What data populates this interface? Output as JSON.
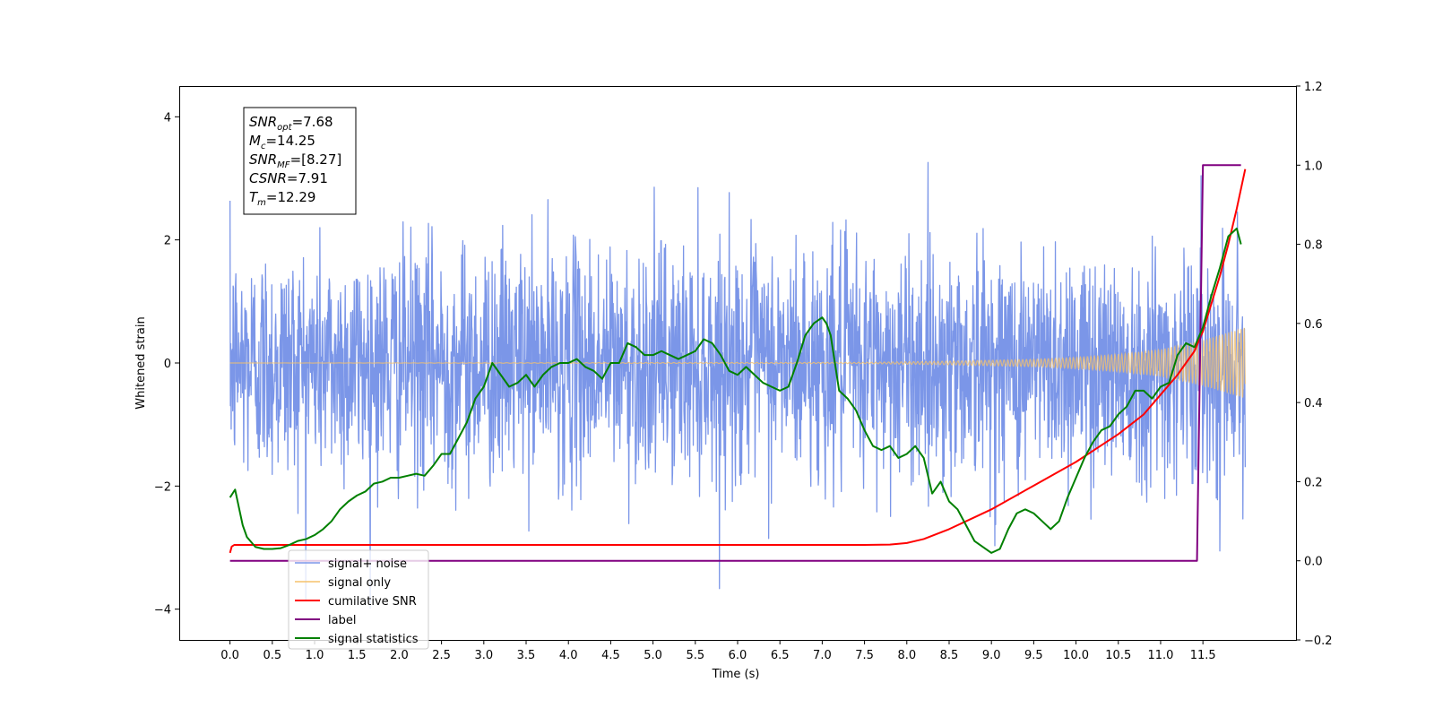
{
  "chart_data": {
    "type": "line",
    "title": "",
    "xlabel": "Time (s)",
    "ylabel": "Whitened strain",
    "xlim": [
      -0.6,
      12.6
    ],
    "ylim": [
      -4.5,
      4.5
    ],
    "ylim_right": [
      -0.2,
      1.2
    ],
    "x_ticks": [
      "0.0",
      "0.5",
      "1.0",
      "1.5",
      "2.0",
      "2.5",
      "3.0",
      "3.5",
      "4.0",
      "4.5",
      "5.0",
      "5.5",
      "6.0",
      "6.5",
      "7.0",
      "7.5",
      "8.0",
      "8.5",
      "9.0",
      "9.5",
      "10.0",
      "10.5",
      "11.0",
      "11.5"
    ],
    "y_ticks_left": [
      "4",
      "2",
      "0",
      "−2",
      "−4"
    ],
    "y_ticks_right": [
      "1.2",
      "1.0",
      "0.8",
      "0.6",
      "0.4",
      "0.2",
      "0.0",
      "−0.2"
    ],
    "grid": false,
    "legend_position": "lower-left",
    "annotation": {
      "lines": [
        {
          "base": "SNR",
          "sub": "opt",
          "rest": "=7.68"
        },
        {
          "base": "M",
          "sub": "c",
          "rest": "=14.25"
        },
        {
          "base": "SNR",
          "sub": "MF",
          "rest": "=[8.27]"
        },
        {
          "base": "CSNR",
          "sub": "",
          "rest": "=7.91"
        },
        {
          "base": "T",
          "sub": "m",
          "rest": "=12.29"
        }
      ]
    },
    "legend": [
      {
        "label": "signal+ noise",
        "color": "#7b96e8"
      },
      {
        "label": "signal only",
        "color": "#f5c26b"
      },
      {
        "label": "cumilative SNR",
        "color": "#ff0000"
      },
      {
        "label": "label",
        "color": "#800080"
      },
      {
        "label": "signal statistics",
        "color": "#008000"
      }
    ],
    "series": [
      {
        "name": "signal+ noise",
        "axis": "left",
        "color": "#7b96e8",
        "noise_std": 0.95,
        "noise_max": 4.1,
        "noise_min": -4.1,
        "x_start": 0.0,
        "x_end": 12.0
      },
      {
        "name": "signal only",
        "axis": "left",
        "color": "#f5c26b",
        "envelope": {
          "x": [
            0.0,
            7.5,
            8.5,
            9.5,
            10.0,
            10.5,
            11.0,
            11.5,
            12.0
          ],
          "amplitude": [
            0.0,
            0.01,
            0.03,
            0.06,
            0.09,
            0.14,
            0.22,
            0.37,
            0.58
          ]
        }
      },
      {
        "name": "cumilative SNR",
        "axis": "right",
        "color": "#ff0000",
        "x": [
          0.0,
          0.02,
          0.05,
          2.0,
          4.0,
          6.0,
          7.0,
          7.5,
          7.8,
          8.0,
          8.2,
          8.5,
          8.8,
          9.0,
          9.5,
          10.0,
          10.5,
          10.8,
          11.0,
          11.2,
          11.4,
          11.5,
          11.6,
          11.7,
          11.8,
          11.9,
          12.0
        ],
        "y": [
          0.02,
          0.036,
          0.04,
          0.04,
          0.04,
          0.04,
          0.04,
          0.04,
          0.041,
          0.045,
          0.055,
          0.08,
          0.11,
          0.13,
          0.19,
          0.25,
          0.32,
          0.37,
          0.42,
          0.47,
          0.53,
          0.58,
          0.65,
          0.72,
          0.8,
          0.89,
          0.99
        ]
      },
      {
        "name": "label",
        "axis": "right",
        "color": "#800080",
        "x": [
          0.0,
          11.43,
          11.5,
          11.95
        ],
        "y": [
          0.0,
          0.0,
          1.0,
          1.0
        ]
      },
      {
        "name": "signal statistics",
        "axis": "right",
        "color": "#008000",
        "x": [
          0.0,
          0.06,
          0.1,
          0.15,
          0.2,
          0.3,
          0.4,
          0.5,
          0.6,
          0.7,
          0.8,
          0.9,
          1.0,
          1.1,
          1.2,
          1.3,
          1.4,
          1.5,
          1.6,
          1.7,
          1.8,
          1.9,
          2.0,
          2.1,
          2.2,
          2.3,
          2.4,
          2.5,
          2.6,
          2.7,
          2.8,
          2.9,
          3.0,
          3.1,
          3.2,
          3.3,
          3.4,
          3.5,
          3.6,
          3.7,
          3.8,
          3.9,
          4.0,
          4.1,
          4.2,
          4.3,
          4.4,
          4.5,
          4.6,
          4.7,
          4.8,
          4.9,
          5.0,
          5.1,
          5.2,
          5.3,
          5.4,
          5.5,
          5.6,
          5.7,
          5.8,
          5.9,
          6.0,
          6.1,
          6.2,
          6.3,
          6.4,
          6.5,
          6.6,
          6.7,
          6.8,
          6.9,
          7.0,
          7.05,
          7.1,
          7.2,
          7.3,
          7.4,
          7.5,
          7.6,
          7.7,
          7.8,
          7.9,
          8.0,
          8.1,
          8.2,
          8.3,
          8.4,
          8.5,
          8.6,
          8.7,
          8.8,
          8.9,
          9.0,
          9.1,
          9.2,
          9.3,
          9.4,
          9.5,
          9.6,
          9.7,
          9.8,
          9.9,
          10.0,
          10.1,
          10.2,
          10.3,
          10.4,
          10.5,
          10.6,
          10.7,
          10.8,
          10.9,
          11.0,
          11.1,
          11.2,
          11.3,
          11.4,
          11.5,
          11.6,
          11.7,
          11.8,
          11.9,
          11.95
        ],
        "y": [
          0.16,
          0.18,
          0.14,
          0.09,
          0.06,
          0.035,
          0.03,
          0.03,
          0.032,
          0.04,
          0.05,
          0.055,
          0.065,
          0.08,
          0.1,
          0.13,
          0.15,
          0.165,
          0.175,
          0.195,
          0.2,
          0.21,
          0.21,
          0.215,
          0.22,
          0.215,
          0.24,
          0.27,
          0.27,
          0.31,
          0.35,
          0.41,
          0.44,
          0.5,
          0.47,
          0.44,
          0.45,
          0.47,
          0.44,
          0.47,
          0.49,
          0.5,
          0.5,
          0.51,
          0.49,
          0.48,
          0.46,
          0.5,
          0.5,
          0.55,
          0.54,
          0.52,
          0.52,
          0.53,
          0.52,
          0.51,
          0.52,
          0.53,
          0.56,
          0.55,
          0.52,
          0.48,
          0.47,
          0.49,
          0.47,
          0.45,
          0.44,
          0.43,
          0.44,
          0.5,
          0.57,
          0.6,
          0.615,
          0.6,
          0.57,
          0.43,
          0.41,
          0.38,
          0.33,
          0.29,
          0.28,
          0.29,
          0.26,
          0.27,
          0.29,
          0.26,
          0.17,
          0.2,
          0.15,
          0.13,
          0.09,
          0.05,
          0.035,
          0.02,
          0.03,
          0.08,
          0.12,
          0.13,
          0.12,
          0.1,
          0.08,
          0.1,
          0.16,
          0.21,
          0.26,
          0.3,
          0.33,
          0.34,
          0.37,
          0.39,
          0.43,
          0.43,
          0.41,
          0.44,
          0.45,
          0.52,
          0.55,
          0.54,
          0.59,
          0.67,
          0.74,
          0.82,
          0.84,
          0.8
        ]
      }
    ]
  }
}
